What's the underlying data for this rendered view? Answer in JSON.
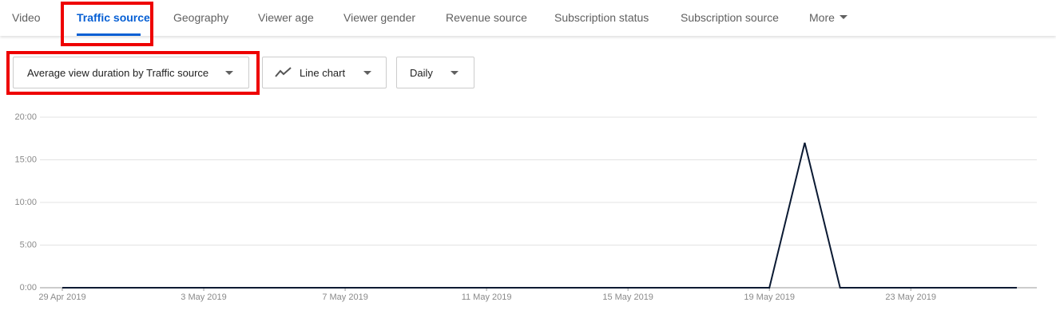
{
  "tabs": [
    "Video",
    "Traffic source",
    "Geography",
    "Viewer age",
    "Viewer gender",
    "Revenue source",
    "Subscription status",
    "Subscription source",
    "More"
  ],
  "active_tab": "Traffic source",
  "controls": {
    "metric": "Average view duration by Traffic source",
    "chart_kind": "Line chart",
    "interval": "Daily"
  },
  "chart_data": {
    "type": "line",
    "categories": [
      "29 Apr 2019",
      null,
      null,
      null,
      "3 May 2019",
      null,
      null,
      null,
      "7 May 2019",
      null,
      null,
      null,
      "11 May 2019",
      null,
      null,
      null,
      "15 May 2019",
      null,
      null,
      null,
      "19 May 2019",
      null,
      null,
      null,
      "23 May 2019",
      null,
      null,
      null
    ],
    "values": [
      0,
      0,
      0,
      0,
      0,
      0,
      0,
      0,
      0,
      0,
      0,
      0,
      0,
      0,
      0,
      0,
      0,
      0,
      0,
      0,
      0,
      17,
      0,
      0,
      0,
      0,
      0,
      0
    ],
    "color": "#0b1a33",
    "ylim": [
      0,
      20
    ],
    "yticks": [
      {
        "value": 0,
        "label": "0:00"
      },
      {
        "value": 5,
        "label": "5:00"
      },
      {
        "value": 10,
        "label": "10:00"
      },
      {
        "value": 15,
        "label": "15:00"
      },
      {
        "value": 20,
        "label": "20:00"
      }
    ],
    "grid": true
  }
}
